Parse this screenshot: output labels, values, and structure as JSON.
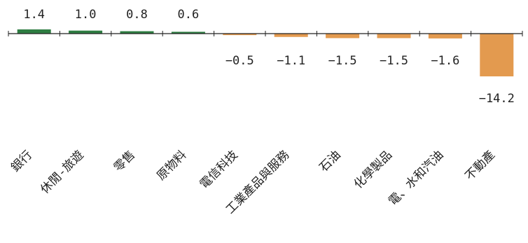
{
  "chart_data": {
    "type": "bar",
    "title": "",
    "xlabel": "",
    "ylabel": "",
    "categories": [
      "銀行",
      "休閒-旅遊",
      "零售",
      "原物料",
      "電信科技",
      "工業產品與服務",
      "石油",
      "化學製品",
      "電、水和汽油",
      "不動產"
    ],
    "values": [
      1.4,
      1.0,
      0.8,
      0.6,
      -0.5,
      -1.1,
      -1.5,
      -1.5,
      -1.6,
      -14.2
    ],
    "value_labels": [
      "1.4",
      "1.0",
      "0.8",
      "0.6",
      "-0.5",
      "-1.1",
      "-1.5",
      "-1.5",
      "-1.6",
      "-14.2"
    ],
    "grid": false,
    "legend": "none",
    "colors": {
      "positive": "#2e7d42",
      "negative": "#e39a4f",
      "axis": "#222222",
      "text": "#222222"
    }
  }
}
